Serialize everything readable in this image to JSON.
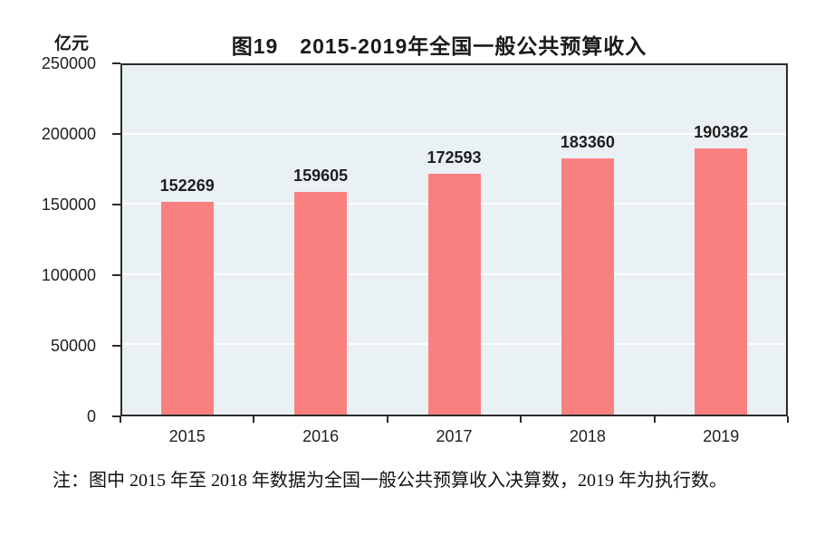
{
  "chart_data": {
    "type": "bar",
    "title": "图19　2015-2019年全国一般公共预算收入",
    "unit_label": "亿元",
    "categories": [
      "2015",
      "2016",
      "2017",
      "2018",
      "2019"
    ],
    "values": [
      152269,
      159605,
      172593,
      183360,
      190382
    ],
    "data_labels": [
      152269,
      159605,
      172593,
      183360,
      190382
    ],
    "ylim": [
      0,
      250000
    ],
    "yticks": [
      0,
      50000,
      100000,
      150000,
      200000,
      250000
    ],
    "xlabel": "",
    "ylabel": "亿元",
    "grid": true,
    "legend_position": "none",
    "bar_color": "#FA8080",
    "plot_background": "#EAF1F5",
    "grid_color": "#FFFFFF",
    "axis_border_color": "#2B2B2B"
  },
  "note": {
    "text": "注：图中 2015 年至 2018 年数据为全国一般公共预算收入决算数，2019 年为执行数。"
  }
}
